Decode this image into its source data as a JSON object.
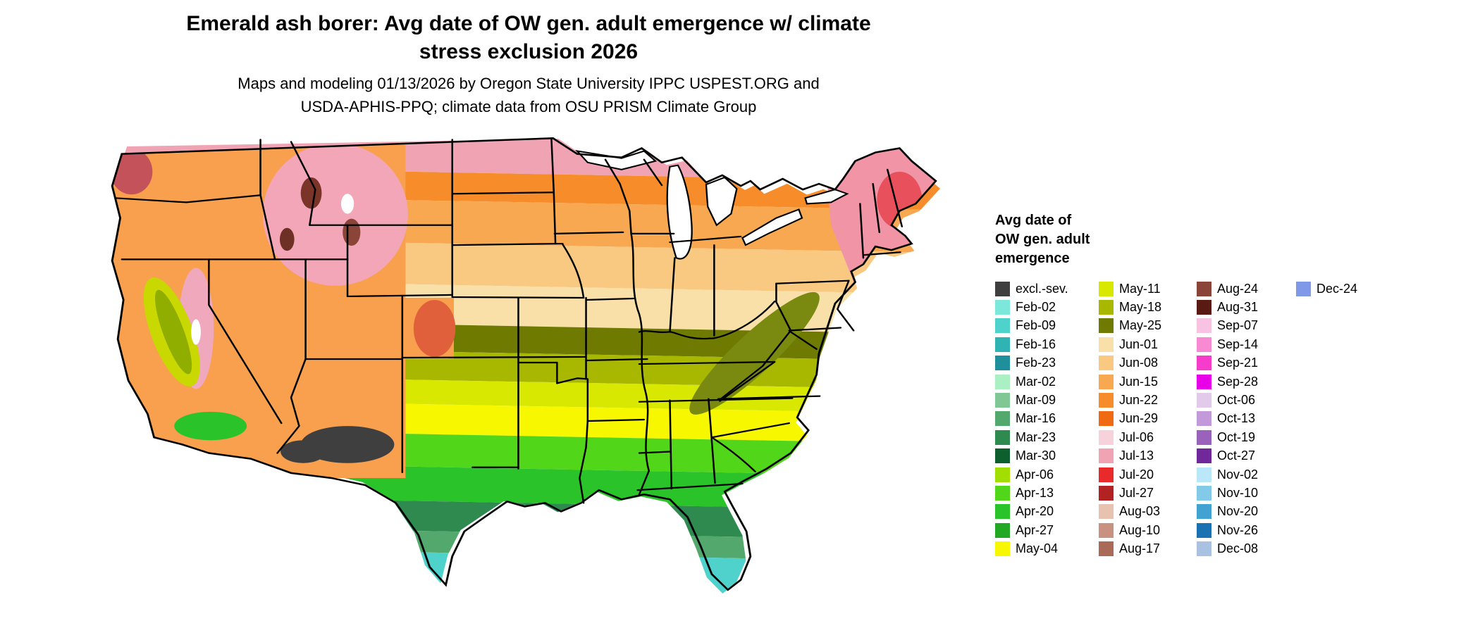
{
  "header": {
    "title_line1": "Emerald ash borer: Avg date of OW gen. adult emergence w/ climate",
    "title_line2": "stress exclusion 2026",
    "subtitle_line1": "Maps and modeling 01/13/2026 by Oregon State University IPPC USPEST.ORG and",
    "subtitle_line2": "USDA-APHIS-PPQ; climate data from OSU PRISM Climate Group"
  },
  "legend": {
    "title_lines": [
      "Avg date of",
      "OW gen. adult",
      "emergence"
    ],
    "columns": [
      [
        {
          "label": "excl.-sev.",
          "color": "#3F3F3F"
        },
        {
          "label": "Feb-02",
          "color": "#7CE8DC"
        },
        {
          "label": "Feb-09",
          "color": "#4FD2CB"
        },
        {
          "label": "Feb-16",
          "color": "#2FB3B3"
        },
        {
          "label": "Feb-23",
          "color": "#1F8F9B"
        },
        {
          "label": "Mar-02",
          "color": "#ABF0C3"
        },
        {
          "label": "Mar-09",
          "color": "#7FC795"
        },
        {
          "label": "Mar-16",
          "color": "#53A96D"
        },
        {
          "label": "Mar-23",
          "color": "#2E8A4F"
        },
        {
          "label": "Mar-30",
          "color": "#0E5F2E"
        },
        {
          "label": "Apr-06",
          "color": "#A2DE00"
        },
        {
          "label": "Apr-13",
          "color": "#52D61A"
        },
        {
          "label": "Apr-20",
          "color": "#2AC32A"
        },
        {
          "label": "Apr-27",
          "color": "#22A822"
        },
        {
          "label": "May-04",
          "color": "#F7F700"
        }
      ],
      [
        {
          "label": "May-11",
          "color": "#D8E800"
        },
        {
          "label": "May-18",
          "color": "#A8B800"
        },
        {
          "label": "May-25",
          "color": "#6E7A00"
        },
        {
          "label": "Jun-01",
          "color": "#F8E0A8"
        },
        {
          "label": "Jun-08",
          "color": "#F9C981"
        },
        {
          "label": "Jun-15",
          "color": "#F9A852"
        },
        {
          "label": "Jun-22",
          "color": "#F78C2A"
        },
        {
          "label": "Jun-29",
          "color": "#F06A14"
        },
        {
          "label": "Jul-06",
          "color": "#F8D2DA"
        },
        {
          "label": "Jul-13",
          "color": "#F0A3B3"
        },
        {
          "label": "Jul-20",
          "color": "#E82A2A"
        },
        {
          "label": "Jul-27",
          "color": "#B22222"
        },
        {
          "label": "Aug-03",
          "color": "#E8C2B0"
        },
        {
          "label": "Aug-10",
          "color": "#C89180"
        },
        {
          "label": "Aug-17",
          "color": "#A96A58"
        }
      ],
      [
        {
          "label": "Aug-24",
          "color": "#8A4438"
        },
        {
          "label": "Aug-31",
          "color": "#5A1A14"
        },
        {
          "label": "Sep-07",
          "color": "#F8C2E2"
        },
        {
          "label": "Sep-14",
          "color": "#F78AD2"
        },
        {
          "label": "Sep-21",
          "color": "#F73BCB"
        },
        {
          "label": "Sep-28",
          "color": "#E800E8"
        },
        {
          "label": "Oct-06",
          "color": "#E2CAEA"
        },
        {
          "label": "Oct-13",
          "color": "#C29ADA"
        },
        {
          "label": "Oct-19",
          "color": "#9A62BA"
        },
        {
          "label": "Oct-27",
          "color": "#71289A"
        },
        {
          "label": "Nov-02",
          "color": "#BAE8F8"
        },
        {
          "label": "Nov-10",
          "color": "#82CAE8"
        },
        {
          "label": "Nov-20",
          "color": "#42A2D2"
        },
        {
          "label": "Nov-26",
          "color": "#1A72B2"
        },
        {
          "label": "Dec-08",
          "color": "#AAC2E2"
        }
      ],
      [
        {
          "label": "Dec-24",
          "color": "#8098E8"
        }
      ]
    ]
  },
  "map": {
    "background": "#FFFFFF",
    "border_color": "#000000",
    "bands": [
      {
        "color": "#F0A3B3",
        "from": -20,
        "to": 78
      },
      {
        "color": "#F78C2A",
        "from": 78,
        "to": 118
      },
      {
        "color": "#F9A852",
        "from": 118,
        "to": 178
      },
      {
        "color": "#F9C981",
        "from": 178,
        "to": 236
      },
      {
        "color": "#F8E0A8",
        "from": 236,
        "to": 292
      },
      {
        "color": "#6E7A00",
        "from": 292,
        "to": 330
      },
      {
        "color": "#A8B800",
        "from": 330,
        "to": 370
      },
      {
        "color": "#D8E800",
        "from": 370,
        "to": 404
      },
      {
        "color": "#F7F700",
        "from": 404,
        "to": 446
      },
      {
        "color": "#52D61A",
        "from": 446,
        "to": 492
      },
      {
        "color": "#2AC32A",
        "from": 492,
        "to": 540
      },
      {
        "color": "#2E8A4F",
        "from": 540,
        "to": 582
      },
      {
        "color": "#53A96D",
        "from": 582,
        "to": 612
      },
      {
        "color": "#4FD2CB",
        "from": 612,
        "to": 700
      }
    ],
    "overlays": [
      {
        "id": "ov-west",
        "color": "#F8A04E"
      },
      {
        "id": "ov-west-pink1",
        "color": "#F2A6B8"
      },
      {
        "id": "ov-west-pink2",
        "color": "#F0A8BC"
      },
      {
        "id": "ov-wa-red",
        "color": "#C4525A"
      },
      {
        "id": "ov-mt-dark1",
        "color": "#7A3528"
      },
      {
        "id": "ov-mt-dark2",
        "color": "#8A4538"
      },
      {
        "id": "ov-mt-dark3",
        "color": "#6E2F24"
      },
      {
        "id": "ov-co-red",
        "color": "#E0603C"
      },
      {
        "id": "ov-ca-valley",
        "color": "#C8D800"
      },
      {
        "id": "ov-ca-valley2",
        "color": "#8FAE00"
      },
      {
        "id": "ov-white1",
        "color": "#FFFFFF"
      },
      {
        "id": "ov-white2",
        "color": "#FFFFFF"
      },
      {
        "id": "ov-socal-green",
        "color": "#2AC32A"
      },
      {
        "id": "ov-az-excl",
        "color": "#3F3F3F"
      },
      {
        "id": "ov-az-excl2",
        "color": "#3F3F3F"
      },
      {
        "id": "ov-ne-pink",
        "color": "#F094A6"
      },
      {
        "id": "ov-ne-red",
        "color": "#E8505C"
      },
      {
        "id": "ov-appalachia",
        "color": "#7A8A10"
      }
    ]
  }
}
